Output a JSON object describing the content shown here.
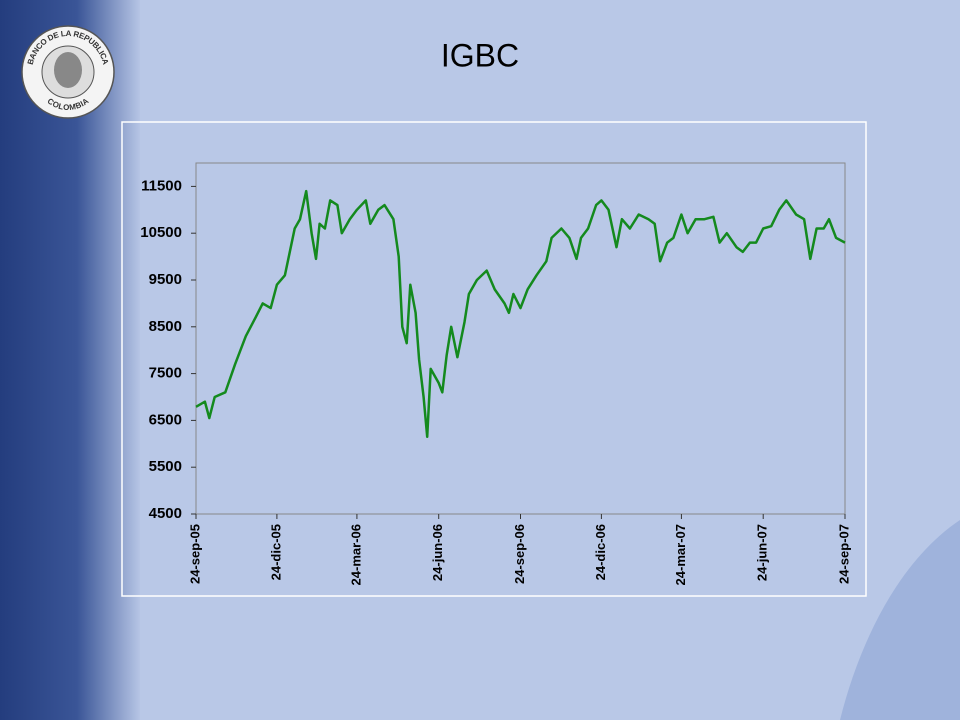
{
  "logo": {
    "name": "BANCO DE LA REPUBLICA",
    "country": "COLOMBIA"
  },
  "chart_data": {
    "type": "line",
    "title": "IGBC",
    "color": "#148a1e",
    "x": [
      "2005-09-24",
      "2005-10-04",
      "2005-10-09",
      "2005-10-15",
      "2005-10-27",
      "2005-11-07",
      "2005-11-19",
      "2005-11-30",
      "2005-12-08",
      "2005-12-17",
      "2005-12-24",
      "2006-01-02",
      "2006-01-13",
      "2006-01-19",
      "2006-01-26",
      "2006-02-01",
      "2006-02-06",
      "2006-02-10",
      "2006-02-16",
      "2006-02-22",
      "2006-03-02",
      "2006-03-07",
      "2006-03-16",
      "2006-03-24",
      "2006-04-03",
      "2006-04-08",
      "2006-04-17",
      "2006-04-24",
      "2006-05-04",
      "2006-05-10",
      "2006-05-14",
      "2006-05-19",
      "2006-05-23",
      "2006-05-29",
      "2006-06-02",
      "2006-06-07",
      "2006-06-11",
      "2006-06-15",
      "2006-06-24",
      "2006-06-28",
      "2006-07-03",
      "2006-07-08",
      "2006-07-15",
      "2006-07-23",
      "2006-07-28",
      "2006-08-06",
      "2006-08-17",
      "2006-08-26",
      "2006-09-06",
      "2006-09-11",
      "2006-09-16",
      "2006-09-24",
      "2006-10-02",
      "2006-10-12",
      "2006-10-23",
      "2006-10-29",
      "2006-11-09",
      "2006-11-18",
      "2006-11-26",
      "2006-12-01",
      "2006-12-09",
      "2006-12-18",
      "2006-12-24",
      "2007-01-01",
      "2007-01-10",
      "2007-01-16",
      "2007-01-25",
      "2007-02-04",
      "2007-02-15",
      "2007-02-22",
      "2007-02-28",
      "2007-03-08",
      "2007-03-15",
      "2007-03-24",
      "2007-03-31",
      "2007-04-09",
      "2007-04-19",
      "2007-04-29",
      "2007-05-06",
      "2007-05-14",
      "2007-05-25",
      "2007-06-01",
      "2007-06-09",
      "2007-06-16",
      "2007-06-24",
      "2007-07-03",
      "2007-07-12",
      "2007-07-20",
      "2007-07-31",
      "2007-08-09",
      "2007-08-16",
      "2007-08-23",
      "2007-08-31",
      "2007-09-06",
      "2007-09-14",
      "2007-09-24"
    ],
    "values": [
      6790,
      6900,
      6550,
      7000,
      7100,
      7700,
      8300,
      8700,
      9000,
      8900,
      9400,
      9600,
      10600,
      10800,
      11400,
      10500,
      9950,
      10700,
      10600,
      11200,
      11100,
      10500,
      10800,
      11000,
      11200,
      10700,
      11000,
      11100,
      10800,
      10000,
      8500,
      8150,
      9400,
      8800,
      7800,
      7000,
      6150,
      7600,
      7300,
      7100,
      7900,
      8500,
      7850,
      8600,
      9200,
      9500,
      9700,
      9300,
      9000,
      8800,
      9200,
      8900,
      9300,
      9600,
      9900,
      10400,
      10600,
      10400,
      9950,
      10400,
      10600,
      11100,
      11200,
      11000,
      10200,
      10800,
      10600,
      10900,
      10800,
      10700,
      9900,
      10300,
      10400,
      10900,
      10500,
      10800,
      10800,
      10850,
      10300,
      10500,
      10200,
      10100,
      10300,
      10300,
      10600,
      10650,
      11000,
      11200,
      10900,
      10800,
      9950,
      10600,
      10600,
      10800,
      10400,
      10300
    ],
    "xlim": [
      "2005-09-24",
      "2007-09-24"
    ],
    "xticks": [
      {
        "value": "2005-09-24",
        "label": "24-sep-05"
      },
      {
        "value": "2005-12-24",
        "label": "24-dic-05"
      },
      {
        "value": "2006-03-24",
        "label": "24-mar-06"
      },
      {
        "value": "2006-06-24",
        "label": "24-jun-06"
      },
      {
        "value": "2006-09-24",
        "label": "24-sep-06"
      },
      {
        "value": "2006-12-24",
        "label": "24-dic-06"
      },
      {
        "value": "2007-03-24",
        "label": "24-mar-07"
      },
      {
        "value": "2007-06-24",
        "label": "24-jun-07"
      },
      {
        "value": "2007-09-24",
        "label": "24-sep-07"
      }
    ],
    "ylim": [
      4500,
      12000
    ],
    "yticks": [
      4500,
      5500,
      6500,
      7500,
      8500,
      9500,
      10500,
      11500
    ],
    "grid": false
  }
}
